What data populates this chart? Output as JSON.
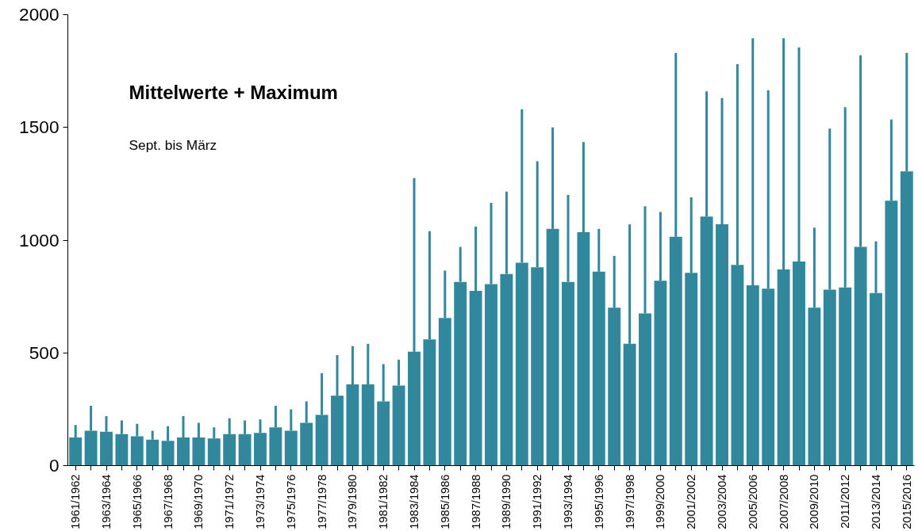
{
  "chart_data": {
    "type": "bar",
    "title": "Mittelwerte + Maximum",
    "subtitle": "Sept. bis März",
    "categories": [
      "1961/1962",
      null,
      "1963/1964",
      null,
      "1965/1966",
      null,
      "1967/1968",
      null,
      "1969/1970",
      null,
      "1971/1972",
      null,
      "1973/1974",
      null,
      "1975/1976",
      null,
      "1977/1978",
      null,
      "1979/1980",
      null,
      "1981/1982",
      null,
      "1983/1984",
      null,
      "1985/1986",
      null,
      "1987/1988",
      null,
      "1989/1990",
      null,
      "1991/1992",
      null,
      "1993/1994",
      null,
      "1995/1996",
      null,
      "1997/1998",
      null,
      "1999/2000",
      null,
      "2001/2002",
      null,
      "2003/2004",
      null,
      "2005/2006",
      null,
      "2007/2008",
      null,
      "2009/2010",
      null,
      "2011/2012",
      null,
      "2013/2014",
      null,
      "2015/2016"
    ],
    "values": [
      125,
      155,
      150,
      140,
      130,
      115,
      110,
      125,
      125,
      120,
      140,
      140,
      145,
      170,
      155,
      190,
      225,
      310,
      360,
      360,
      285,
      355,
      505,
      560,
      655,
      815,
      775,
      805,
      850,
      900,
      880,
      1050,
      815,
      1035,
      860,
      700,
      540,
      675,
      820,
      1015,
      855,
      1105,
      1070,
      890,
      800,
      785,
      870,
      905,
      700,
      780,
      790,
      970,
      765,
      1175,
      1305
    ],
    "errors": [
      [
        125,
        180
      ],
      [
        155,
        265
      ],
      [
        150,
        220
      ],
      [
        140,
        200
      ],
      [
        130,
        185
      ],
      [
        115,
        155
      ],
      [
        110,
        175
      ],
      [
        125,
        220
      ],
      [
        125,
        190
      ],
      [
        120,
        170
      ],
      [
        140,
        210
      ],
      [
        140,
        200
      ],
      [
        145,
        205
      ],
      [
        170,
        265
      ],
      [
        155,
        250
      ],
      [
        190,
        285
      ],
      [
        225,
        410
      ],
      [
        310,
        490
      ],
      [
        360,
        530
      ],
      [
        360,
        540
      ],
      [
        285,
        450
      ],
      [
        355,
        470
      ],
      [
        505,
        1275
      ],
      [
        560,
        1040
      ],
      [
        655,
        865
      ],
      [
        815,
        970
      ],
      [
        775,
        1060
      ],
      [
        805,
        1165
      ],
      [
        850,
        1215
      ],
      [
        900,
        1580
      ],
      [
        880,
        1350
      ],
      [
        1050,
        1500
      ],
      [
        815,
        1200
      ],
      [
        1035,
        1435
      ],
      [
        860,
        1050
      ],
      [
        700,
        930
      ],
      [
        540,
        1070
      ],
      [
        675,
        1150
      ],
      [
        820,
        1125
      ],
      [
        1015,
        1830
      ],
      [
        855,
        1190
      ],
      [
        1105,
        1660
      ],
      [
        1070,
        1630
      ],
      [
        890,
        1780
      ],
      [
        800,
        1895
      ],
      [
        785,
        1665
      ],
      [
        870,
        1895
      ],
      [
        905,
        1855
      ],
      [
        700,
        1055
      ],
      [
        780,
        1495
      ],
      [
        790,
        1590
      ],
      [
        970,
        1820
      ],
      [
        765,
        995
      ],
      [
        1175,
        1535
      ],
      [
        1305,
        1830
      ]
    ],
    "color": "#31879b",
    "ylim": [
      0,
      2000
    ],
    "yticks": [
      0,
      500,
      1000,
      1500,
      2000
    ],
    "grid": false
  }
}
